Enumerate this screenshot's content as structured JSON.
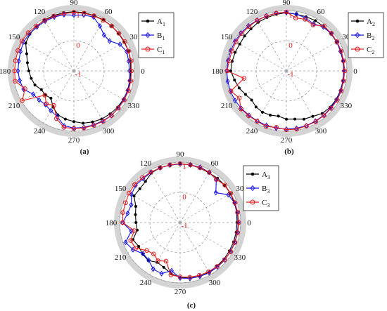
{
  "chart_data": [
    {
      "type": "polar-line",
      "caption": "(a)",
      "angle_ticks": [
        "0",
        "30",
        "60",
        "90",
        "120",
        "150",
        "180",
        "210",
        "240",
        "270",
        "300",
        "330"
      ],
      "radial_tick_labels": [
        "-1",
        "0",
        "1"
      ],
      "rlim": [
        -1,
        1
      ],
      "grid": true,
      "legend_position": "right",
      "series": [
        {
          "name": "A",
          "sub": "1",
          "color": "#000000",
          "marker": "dot",
          "theta": [
            0,
            10,
            20,
            30,
            40,
            50,
            60,
            70,
            80,
            90,
            100,
            110,
            120,
            130,
            140,
            150,
            160,
            170,
            180,
            190,
            200,
            210,
            220,
            230,
            240,
            250,
            260,
            270,
            280,
            290,
            300,
            310,
            320,
            330,
            340,
            350
          ],
          "r": [
            0.88,
            0.9,
            0.92,
            0.92,
            0.93,
            0.94,
            0.95,
            0.95,
            0.96,
            0.96,
            0.96,
            0.95,
            0.95,
            0.92,
            0.9,
            0.84,
            0.66,
            0.56,
            0.49,
            0.43,
            0.37,
            0.24,
            0.24,
            0.18,
            0.38,
            0.55,
            0.62,
            0.68,
            0.76,
            0.8,
            0.84,
            0.86,
            0.88,
            0.89,
            0.89,
            0.89
          ]
        },
        {
          "name": "B",
          "sub": "1",
          "color": "#1010ee",
          "marker": "diamond",
          "theta": [
            0,
            10,
            20,
            30,
            40,
            50,
            60,
            70,
            80,
            90,
            100,
            110,
            120,
            130,
            140,
            150,
            160,
            170,
            180,
            190,
            200,
            210,
            220,
            230,
            240,
            250,
            260,
            270,
            280,
            290,
            300,
            310,
            320,
            330,
            340,
            350
          ],
          "r": [
            0.84,
            0.84,
            0.86,
            0.76,
            0.54,
            0.55,
            0.72,
            0.9,
            0.88,
            0.85,
            0.89,
            0.9,
            0.9,
            0.9,
            0.92,
            0.92,
            0.88,
            0.85,
            0.85,
            0.82,
            0.77,
            0.55,
            0.5,
            0.46,
            0.52,
            0.61,
            0.85,
            0.89,
            0.9,
            0.9,
            0.91,
            0.93,
            0.91,
            0.9,
            0.89,
            0.87
          ]
        },
        {
          "name": "C",
          "sub": "1",
          "color": "#e41a1a",
          "marker": "circle",
          "theta": [
            0,
            10,
            20,
            30,
            40,
            50,
            60,
            70,
            80,
            90,
            100,
            110,
            120,
            130,
            140,
            150,
            160,
            170,
            180,
            190,
            200,
            210,
            220,
            230,
            240,
            250,
            260,
            270,
            280,
            290,
            300,
            310,
            320,
            330,
            340,
            350
          ],
          "r": [
            0.9,
            0.92,
            0.92,
            0.94,
            0.94,
            0.94,
            0.94,
            0.94,
            0.94,
            0.94,
            0.92,
            0.93,
            0.93,
            0.94,
            0.97,
            0.98,
            0.97,
            0.96,
            0.96,
            0.97,
            0.72,
            0.97,
            0.25,
            0.42,
            0.32,
            0.68,
            0.9,
            0.91,
            0.92,
            0.92,
            0.93,
            0.93,
            0.92,
            0.92,
            0.92,
            0.91
          ]
        }
      ]
    },
    {
      "type": "polar-line",
      "caption": "(b)",
      "angle_ticks": [
        "0",
        "30",
        "60",
        "90",
        "120",
        "150",
        "180",
        "210",
        "240",
        "270",
        "300",
        "330"
      ],
      "radial_tick_labels": [
        "-1",
        "0",
        "1"
      ],
      "rlim": [
        -1,
        1
      ],
      "grid": true,
      "legend_position": "right",
      "series": [
        {
          "name": "A",
          "sub": "2",
          "color": "#000000",
          "marker": "dot",
          "theta": [
            0,
            10,
            20,
            30,
            40,
            50,
            60,
            70,
            80,
            90,
            100,
            110,
            120,
            130,
            140,
            150,
            160,
            170,
            180,
            190,
            200,
            210,
            220,
            230,
            240,
            250,
            260,
            270,
            280,
            290,
            300,
            310,
            320,
            330,
            340,
            350
          ],
          "r": [
            0.9,
            0.91,
            0.92,
            0.92,
            0.92,
            0.92,
            0.92,
            0.91,
            0.9,
            0.93,
            0.9,
            0.88,
            0.86,
            0.82,
            0.8,
            0.78,
            0.8,
            0.82,
            0.84,
            0.74,
            0.66,
            0.56,
            0.5,
            0.56,
            0.58,
            0.56,
            0.52,
            0.6,
            0.62,
            0.7,
            0.74,
            0.84,
            0.88,
            0.9,
            0.9,
            0.9
          ]
        },
        {
          "name": "B",
          "sub": "2",
          "color": "#1010ee",
          "marker": "diamond",
          "theta": [
            0,
            10,
            20,
            30,
            40,
            50,
            60,
            70,
            80,
            90,
            100,
            110,
            120,
            130,
            140,
            150,
            160,
            170,
            180,
            190,
            200,
            210,
            220,
            230,
            240,
            250,
            260,
            270,
            280,
            290,
            300,
            310,
            320,
            330,
            340,
            350
          ],
          "r": [
            0.9,
            0.9,
            0.9,
            0.92,
            0.93,
            0.9,
            0.8,
            0.86,
            0.91,
            0.93,
            0.94,
            0.94,
            0.94,
            0.95,
            0.96,
            0.96,
            0.96,
            0.96,
            0.97,
            0.97,
            0.97,
            0.96,
            0.94,
            0.92,
            0.92,
            0.92,
            0.93,
            0.93,
            0.93,
            0.93,
            0.92,
            0.92,
            0.91,
            0.91,
            0.91,
            0.9
          ]
        },
        {
          "name": "C",
          "sub": "2",
          "color": "#e41a1a",
          "marker": "circle",
          "theta": [
            0,
            10,
            20,
            30,
            40,
            50,
            60,
            70,
            80,
            90,
            100,
            110,
            120,
            130,
            140,
            150,
            160,
            170,
            180,
            190,
            200,
            210,
            220,
            230,
            240,
            250,
            260,
            270,
            280,
            290,
            300,
            310,
            320,
            330,
            340,
            350
          ],
          "r": [
            0.93,
            0.92,
            0.93,
            0.93,
            0.94,
            0.94,
            0.76,
            0.82,
            0.78,
            0.95,
            0.94,
            0.93,
            0.93,
            0.92,
            0.93,
            0.92,
            0.92,
            0.92,
            0.96,
            0.42,
            0.95,
            0.8,
            0.96,
            0.94,
            0.93,
            0.96,
            0.9,
            0.95,
            0.96,
            0.94,
            0.94,
            0.93,
            0.93,
            0.94,
            0.93,
            0.92
          ]
        }
      ]
    },
    {
      "type": "polar-line",
      "caption": "(c)",
      "angle_ticks": [
        "0",
        "30",
        "60",
        "90",
        "120",
        "150",
        "180",
        "210",
        "240",
        "270",
        "300",
        "330"
      ],
      "radial_tick_labels": [
        "-1",
        "0",
        "1"
      ],
      "rlim": [
        -1,
        1
      ],
      "grid": true,
      "legend_position": "right",
      "series": [
        {
          "name": "A",
          "sub": "3",
          "color": "#000000",
          "marker": "dot",
          "theta": [
            0,
            10,
            20,
            30,
            40,
            50,
            60,
            70,
            80,
            90,
            100,
            110,
            120,
            130,
            140,
            150,
            160,
            170,
            180,
            190,
            200,
            210,
            220,
            230,
            240,
            250,
            260,
            270,
            280,
            290,
            300,
            310,
            320,
            330,
            340,
            350
          ],
          "r": [
            0.88,
            0.9,
            0.91,
            0.92,
            0.92,
            0.92,
            0.9,
            0.92,
            0.94,
            0.95,
            0.94,
            0.93,
            0.9,
            0.78,
            0.74,
            0.76,
            0.56,
            0.5,
            0.46,
            0.44,
            0.66,
            0.58,
            0.62,
            0.64,
            0.52,
            0.58,
            0.72,
            0.82,
            0.86,
            0.9,
            0.9,
            0.89,
            0.89,
            0.88,
            0.88,
            0.88
          ]
        },
        {
          "name": "B",
          "sub": "3",
          "color": "#1010ee",
          "marker": "diamond",
          "theta": [
            0,
            10,
            20,
            30,
            40,
            50,
            60,
            70,
            80,
            90,
            100,
            110,
            120,
            130,
            140,
            150,
            160,
            170,
            180,
            190,
            200,
            210,
            220,
            230,
            240,
            250,
            260,
            270,
            280,
            290,
            300,
            310,
            320,
            330,
            340,
            350
          ],
          "r": [
            0.92,
            0.92,
            0.91,
            0.84,
            0.54,
            0.86,
            0.92,
            0.95,
            0.94,
            0.94,
            0.93,
            0.93,
            0.92,
            0.9,
            0.92,
            0.86,
            0.72,
            0.76,
            0.9,
            0.64,
            0.92,
            0.8,
            0.6,
            0.62,
            0.78,
            0.8,
            0.62,
            0.84,
            0.88,
            0.9,
            0.92,
            0.92,
            0.93,
            0.92,
            0.92,
            0.92
          ]
        },
        {
          "name": "C",
          "sub": "3",
          "color": "#e41a1a",
          "marker": "circle",
          "theta": [
            0,
            10,
            20,
            30,
            40,
            50,
            60,
            70,
            80,
            90,
            100,
            110,
            120,
            130,
            140,
            150,
            160,
            170,
            180,
            190,
            200,
            210,
            220,
            230,
            240,
            250,
            260,
            270,
            280,
            290,
            300,
            310,
            320,
            330,
            340,
            350
          ],
          "r": [
            0.94,
            0.93,
            0.93,
            0.93,
            0.93,
            0.86,
            0.92,
            0.93,
            0.94,
            0.95,
            0.94,
            0.93,
            0.93,
            0.94,
            0.96,
            0.95,
            0.92,
            0.92,
            0.9,
            0.54,
            0.74,
            0.7,
            0.44,
            0.36,
            0.46,
            0.36,
            0.76,
            0.8,
            0.84,
            0.86,
            0.88,
            0.9,
            0.92,
            0.93,
            0.93,
            0.93
          ]
        }
      ]
    }
  ]
}
